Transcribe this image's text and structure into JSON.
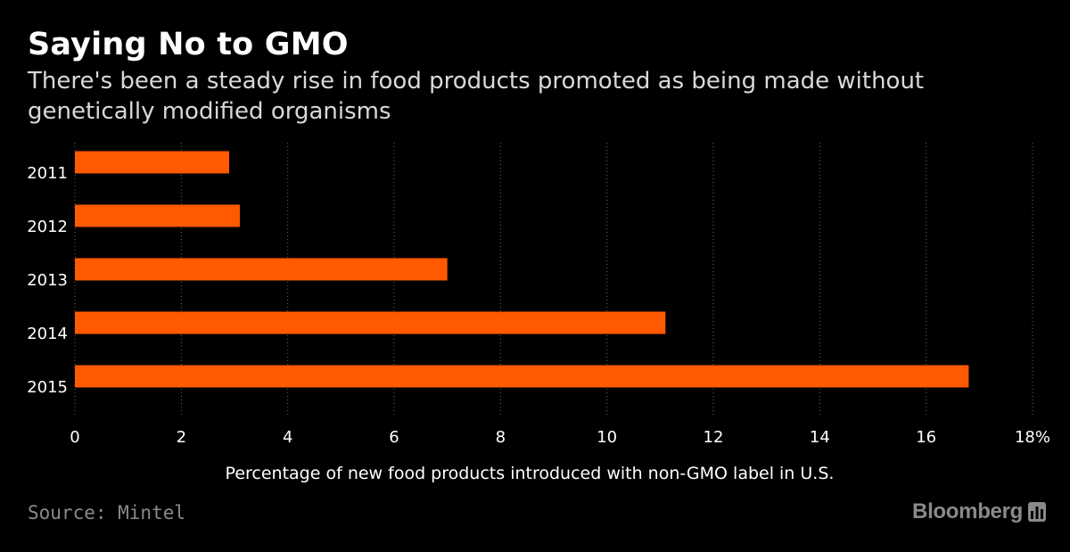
{
  "header": {
    "title": "Saying No to GMO",
    "subtitle": "There's been a steady rise in food products promoted as being made without genetically modified organisms"
  },
  "chart_data": {
    "type": "bar",
    "orientation": "horizontal",
    "categories": [
      "2011",
      "2012",
      "2013",
      "2014",
      "2015"
    ],
    "values": [
      2.9,
      3.1,
      7.0,
      11.1,
      16.8
    ],
    "xlabel": "Percentage of new food products introduced with non-GMO label in U.S.",
    "ylabel": "",
    "xlim": [
      0,
      18
    ],
    "xticks": [
      "0",
      "2",
      "4",
      "6",
      "8",
      "10",
      "12",
      "14",
      "16",
      "18%"
    ],
    "grid": "vertical-dotted",
    "bar_color": "#ff5a00"
  },
  "footer": {
    "source": "Source: Mintel",
    "brand": "Bloomberg",
    "brand_icon": "bloomberg-chart-icon"
  },
  "colors": {
    "background": "#000000",
    "bar": "#ff5a00",
    "text": "#ffffff",
    "muted": "#8a8a8a"
  }
}
